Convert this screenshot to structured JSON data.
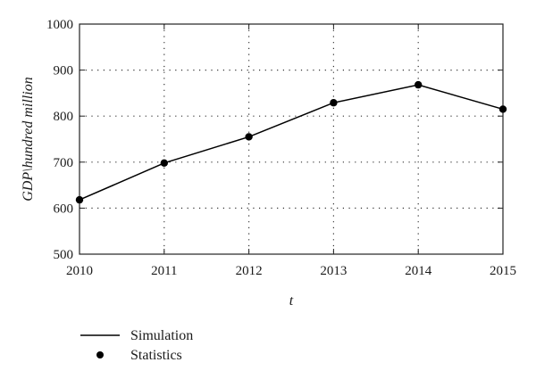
{
  "chart_data": {
    "type": "line",
    "xlabel": "t",
    "ylabel": "GDP\\hundred million",
    "xlim": [
      2010,
      2015
    ],
    "ylim": [
      500,
      1000
    ],
    "x_ticks": [
      2010,
      2011,
      2012,
      2013,
      2014,
      2015
    ],
    "y_ticks": [
      500,
      600,
      700,
      800,
      900,
      1000
    ],
    "grid": true,
    "grid_style": "dotted",
    "legend_position": "bottom-left",
    "series": [
      {
        "name": "Simulation",
        "style": "line",
        "color": "#000000",
        "x": [
          2010,
          2011,
          2012,
          2013,
          2014,
          2015
        ],
        "y": [
          618,
          698,
          755,
          829,
          868,
          815
        ]
      },
      {
        "name": "Statistics",
        "style": "markers",
        "color": "#000000",
        "x": [
          2010,
          2011,
          2012,
          2013,
          2014,
          2015
        ],
        "y": [
          618,
          698,
          755,
          829,
          868,
          815
        ]
      }
    ]
  }
}
